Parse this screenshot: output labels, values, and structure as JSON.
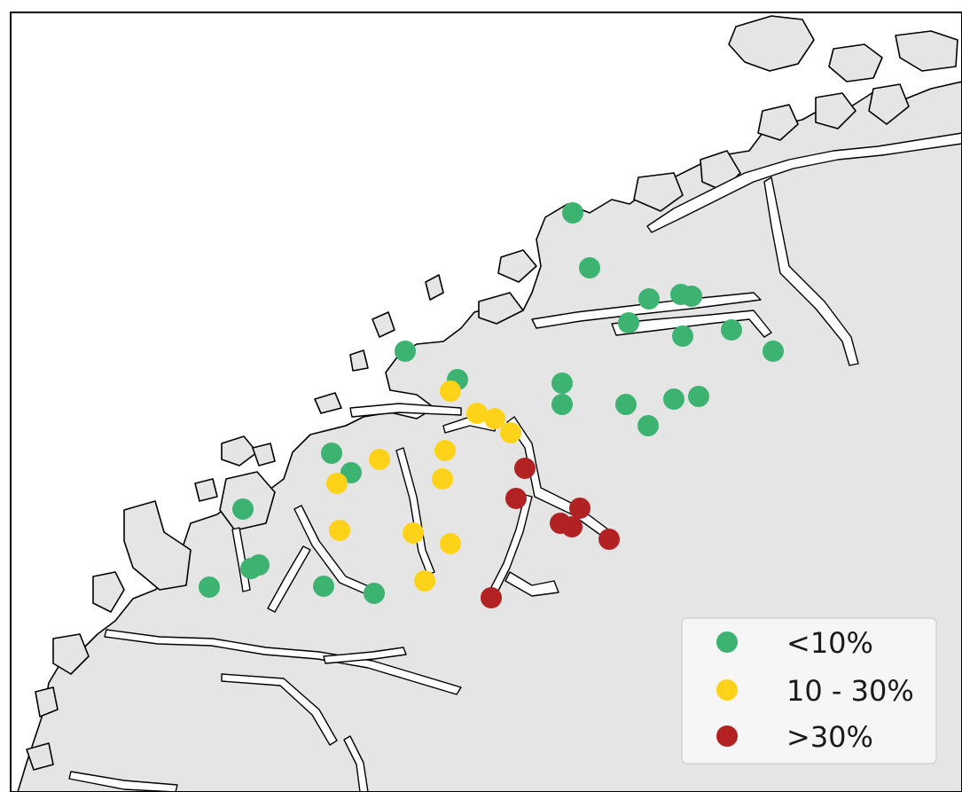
{
  "map": {
    "title": "",
    "background_sea": "#ffffff",
    "land_color": "#e5e5e5",
    "coastline_color": "#000000"
  },
  "legend": {
    "placement": "bottom-right",
    "items": [
      {
        "label": "<10%",
        "color": "#3cb371"
      },
      {
        "label": "10 - 30%",
        "color": "#ffd21a"
      },
      {
        "label": ">30%",
        "color": "#b22222"
      }
    ]
  },
  "categories": {
    "low": {
      "label": "<10%",
      "color": "#3cb371"
    },
    "mid": {
      "label": "10 - 30%",
      "color": "#ffd21a"
    },
    "high": {
      "label": ">30%",
      "color": "#b22222"
    }
  }
}
